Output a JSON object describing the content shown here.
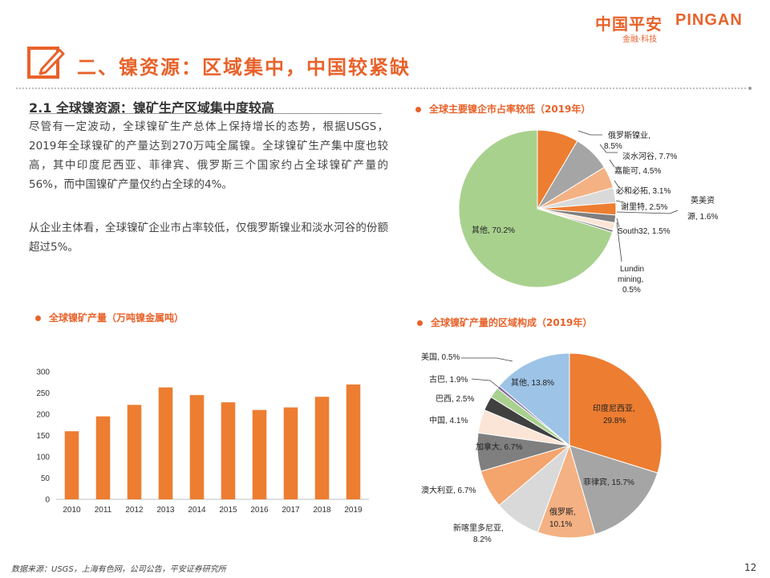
{
  "logo": {
    "cn": "中国平安",
    "en": "PINGAN",
    "sub": "金融·科技"
  },
  "section_title": "二、镍资源：区域集中，中国较紧缺",
  "subheading": "2.1 全球镍资源：镍矿生产区域集中度较高",
  "paragraphs": [
    "尽管有一定波动，全球镍矿生产总体上保持增长的态势，根据USGS，2019年全球镍矿的产量达到270万吨全属镍。全球镍矿生产集中度也较高，其中印度尼西亚、菲律宾、俄罗斯三个国家约占全球镍矿产量的56%，而中国镍矿产量仅约占全球的4%。",
    "从企业主体看，全球镍矿企业市占率较低，仅俄罗斯镍业和淡水河谷的份额超过5%。"
  ],
  "footer": {
    "source": "数据来源：USGS，上海有色网，公司公告，平安证券研究所",
    "page": "12"
  },
  "colors": {
    "accent": "#e8622a",
    "bar": "#ed7d31"
  },
  "chart_data": [
    {
      "id": "company-share",
      "type": "pie",
      "title": "全球主要镍企市占率较低（2019年）",
      "slices": [
        {
          "label": "俄罗斯镍业, 8.5%",
          "value": 8.5,
          "color": "#ed7d31"
        },
        {
          "label": "淡水河谷, 7.7%",
          "value": 7.7,
          "color": "#a5a5a5"
        },
        {
          "label": "嘉能可, 4.5%",
          "value": 4.5,
          "color": "#f4b183"
        },
        {
          "label": "必和必拓, 3.1%",
          "value": 3.1,
          "color": "#d9d9d9"
        },
        {
          "label": "谢里特, 2.5%",
          "value": 2.5,
          "color": "#ed7d31"
        },
        {
          "label": "英美资源, 1.6%",
          "value": 1.6,
          "color": "#7f7f7f"
        },
        {
          "label": "South32, 1.5%",
          "value": 1.5,
          "color": "#fbe5d6"
        },
        {
          "label": "Lundin mining, 0.5%",
          "value": 0.5,
          "color": "#808080"
        },
        {
          "label": "其他, 70.2%",
          "value": 70.2,
          "color": "#a9d18e"
        }
      ]
    },
    {
      "id": "production",
      "type": "bar",
      "title": "全球镍矿产量（万吨镍金属吨）",
      "categories": [
        "2010",
        "2011",
        "2012",
        "2013",
        "2014",
        "2015",
        "2016",
        "2017",
        "2018",
        "2019"
      ],
      "values": [
        160,
        195,
        222,
        263,
        245,
        228,
        210,
        216,
        241,
        270
      ],
      "ylim": [
        0,
        300
      ],
      "yticks": [
        0,
        50,
        100,
        150,
        200,
        250,
        300
      ]
    },
    {
      "id": "region-share",
      "type": "pie",
      "title": "全球镍矿产量的区域构成（2019年）",
      "slices": [
        {
          "label": "印度尼西亚, 29.8%",
          "value": 29.8,
          "color": "#ed7d31"
        },
        {
          "label": "菲律宾, 15.7%",
          "value": 15.7,
          "color": "#a5a5a5"
        },
        {
          "label": "俄罗斯, 10.1%",
          "value": 10.1,
          "color": "#f4b183"
        },
        {
          "label": "新喀里多尼亚, 8.2%",
          "value": 8.2,
          "color": "#d9d9d9"
        },
        {
          "label": "澳大利亚, 6.7%",
          "value": 6.7,
          "color": "#f4a46d"
        },
        {
          "label": "加拿大, 6.7%",
          "value": 6.7,
          "color": "#7f7f7f"
        },
        {
          "label": "中国, 4.1%",
          "value": 4.1,
          "color": "#fbe5d6"
        },
        {
          "label": "巴西, 2.5%",
          "value": 2.5,
          "color": "#404040"
        },
        {
          "label": "古巴, 1.9%",
          "value": 1.9,
          "color": "#a9d18e"
        },
        {
          "label": "美国, 0.5%",
          "value": 0.5,
          "color": "#8064a2"
        },
        {
          "label": "其他, 13.8%",
          "value": 13.8,
          "color": "#9dc3e6"
        }
      ]
    }
  ]
}
